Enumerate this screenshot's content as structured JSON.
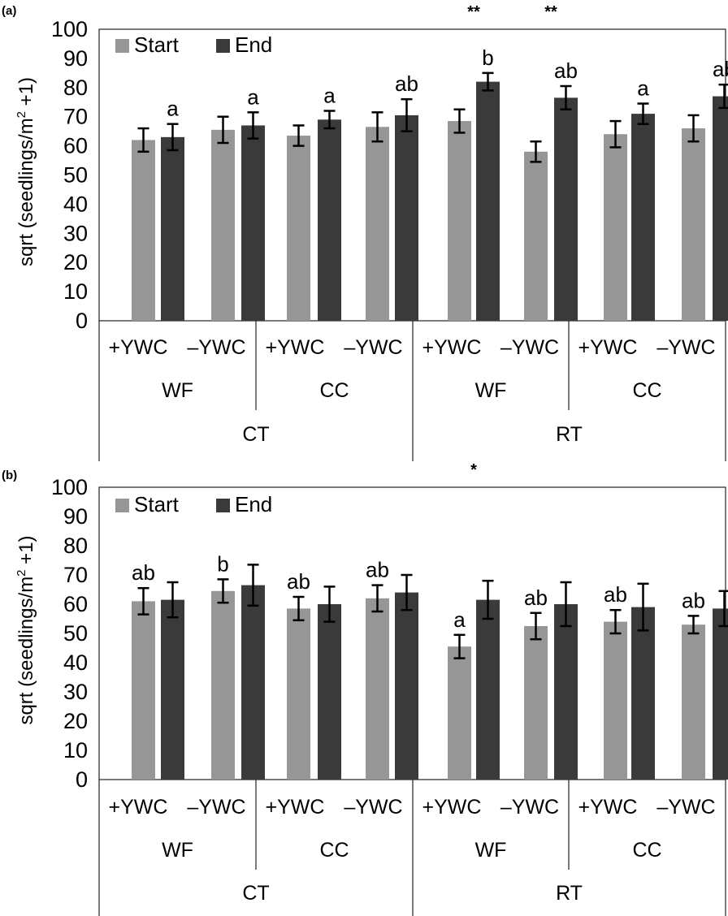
{
  "chart_data": [
    {
      "panel_label": "(a)",
      "type": "bar",
      "ylabel": "sqrt (seedlings/m",
      "ylabel_sup": "2",
      "ylabel_tail": " +1)",
      "ylim": [
        0,
        100
      ],
      "yticks": [
        0,
        10,
        20,
        30,
        40,
        50,
        60,
        70,
        80,
        90,
        100
      ],
      "grid": false,
      "legend_position": "top-left",
      "categories": [
        "+YWC",
        "–YWC",
        "+YWC",
        "–YWC",
        "+YWC",
        "–YWC",
        "+YWC",
        "–YWC"
      ],
      "level2_labels": [
        "WF",
        "CC",
        "WF",
        "CC"
      ],
      "level3_labels": [
        "CT",
        "RT"
      ],
      "series": [
        {
          "name": "Start",
          "color": "#969696",
          "values": [
            62,
            65.5,
            63.5,
            66.5,
            68.5,
            58,
            64,
            66
          ],
          "errors": [
            4,
            4.5,
            3.5,
            5,
            4,
            3.5,
            4.5,
            4.5
          ]
        },
        {
          "name": "End",
          "color": "#3a3a3a",
          "values": [
            63,
            67,
            69,
            70.5,
            82,
            76.5,
            71,
            77
          ],
          "errors": [
            4.5,
            4.5,
            3,
            5.5,
            3,
            4,
            3.5,
            4
          ]
        }
      ],
      "letters": [
        "a",
        "a",
        "a",
        "ab",
        "b",
        "ab",
        "a",
        "ab"
      ],
      "significance": [
        "",
        "",
        "",
        "",
        "**",
        "**",
        "",
        ""
      ]
    },
    {
      "panel_label": "(b)",
      "type": "bar",
      "ylabel": "sqrt (seedlings/m",
      "ylabel_sup": "2",
      "ylabel_tail": " +1)",
      "ylim": [
        0,
        100
      ],
      "yticks": [
        0,
        10,
        20,
        30,
        40,
        50,
        60,
        70,
        80,
        90,
        100
      ],
      "grid": false,
      "legend_position": "top-left",
      "categories": [
        "+YWC",
        "–YWC",
        "+YWC",
        "–YWC",
        "+YWC",
        "–YWC",
        "+YWC",
        "–YWC"
      ],
      "level2_labels": [
        "WF",
        "CC",
        "WF",
        "CC"
      ],
      "level3_labels": [
        "CT",
        "RT"
      ],
      "series": [
        {
          "name": "Start",
          "color": "#969696",
          "values": [
            61,
            64.5,
            58.5,
            62,
            45.5,
            52.5,
            54,
            53
          ],
          "errors": [
            4.5,
            4,
            4,
            4.5,
            4,
            4.5,
            4,
            3
          ]
        },
        {
          "name": "End",
          "color": "#3a3a3a",
          "values": [
            61.5,
            66.5,
            60,
            64,
            61.5,
            60,
            59,
            58.5
          ],
          "errors": [
            6,
            7,
            6,
            6,
            6.5,
            7.5,
            8,
            6
          ]
        }
      ],
      "letters": [
        "ab",
        "b",
        "ab",
        "ab",
        "a",
        "ab",
        "ab",
        "ab"
      ],
      "significance": [
        "",
        "",
        "",
        "",
        "*",
        "",
        "",
        ""
      ]
    }
  ]
}
